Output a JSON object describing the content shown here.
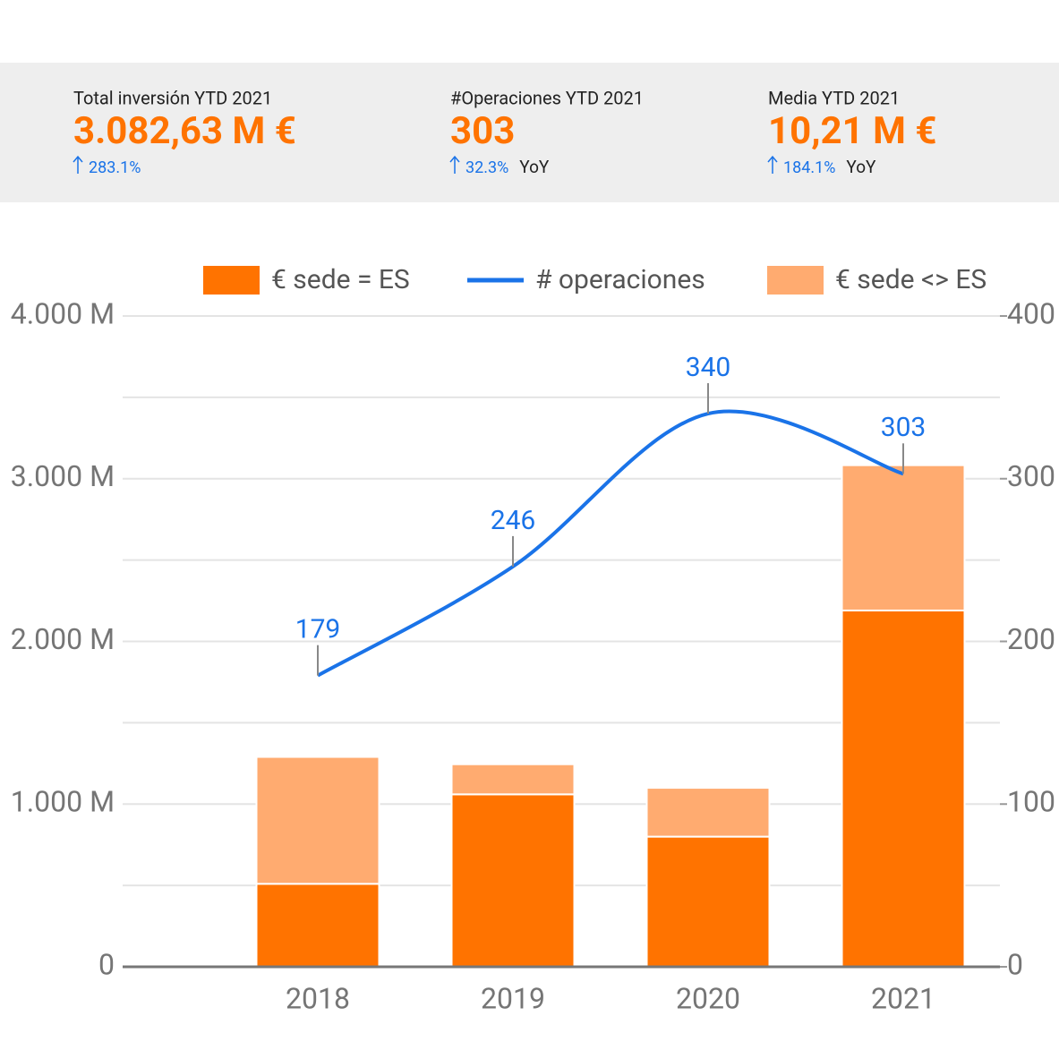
{
  "kpis": [
    {
      "label": "Total inversión YTD 2021",
      "value": "3.082,63 M €",
      "change": "283.1%"
    },
    {
      "label": "#Operaciones YTD 2021",
      "value": "303",
      "change": "32.3%",
      "period": "YoY"
    },
    {
      "label": "Media YTD 2021",
      "value": "10,21 M €",
      "change": "184.1%",
      "period": "YoY"
    }
  ],
  "chart_data": {
    "type": "bar",
    "categories": [
      "2018",
      "2019",
      "2020",
      "2021"
    ],
    "series": [
      {
        "name": "€ sede = ES",
        "type": "bar",
        "color": "#ff7300",
        "values": [
          510,
          1060,
          800,
          2190
        ]
      },
      {
        "name": "# operaciones",
        "type": "line",
        "axis": "y2",
        "color": "#1a73e8",
        "values": [
          179,
          246,
          340,
          303
        ]
      },
      {
        "name": "€ sede <> ES",
        "type": "bar",
        "color": "#ffab70",
        "values": [
          780,
          185,
          300,
          893
        ]
      }
    ],
    "stacked": true,
    "ylim": [
      0,
      4000
    ],
    "yticks": [
      0,
      {
        "value": 1000,
        "label": "1.000 M"
      },
      {
        "value": 2000,
        "label": "2.000 M"
      },
      {
        "value": 3000,
        "label": "3.000 M"
      },
      {
        "value": 4000,
        "label": "4.000 M"
      }
    ],
    "minor_yticks": [
      500,
      1500,
      2500,
      3500
    ],
    "y2lim": [
      0,
      400
    ],
    "y2ticks": [
      0,
      100,
      200,
      300,
      400
    ],
    "grid": true,
    "legend": "top"
  }
}
